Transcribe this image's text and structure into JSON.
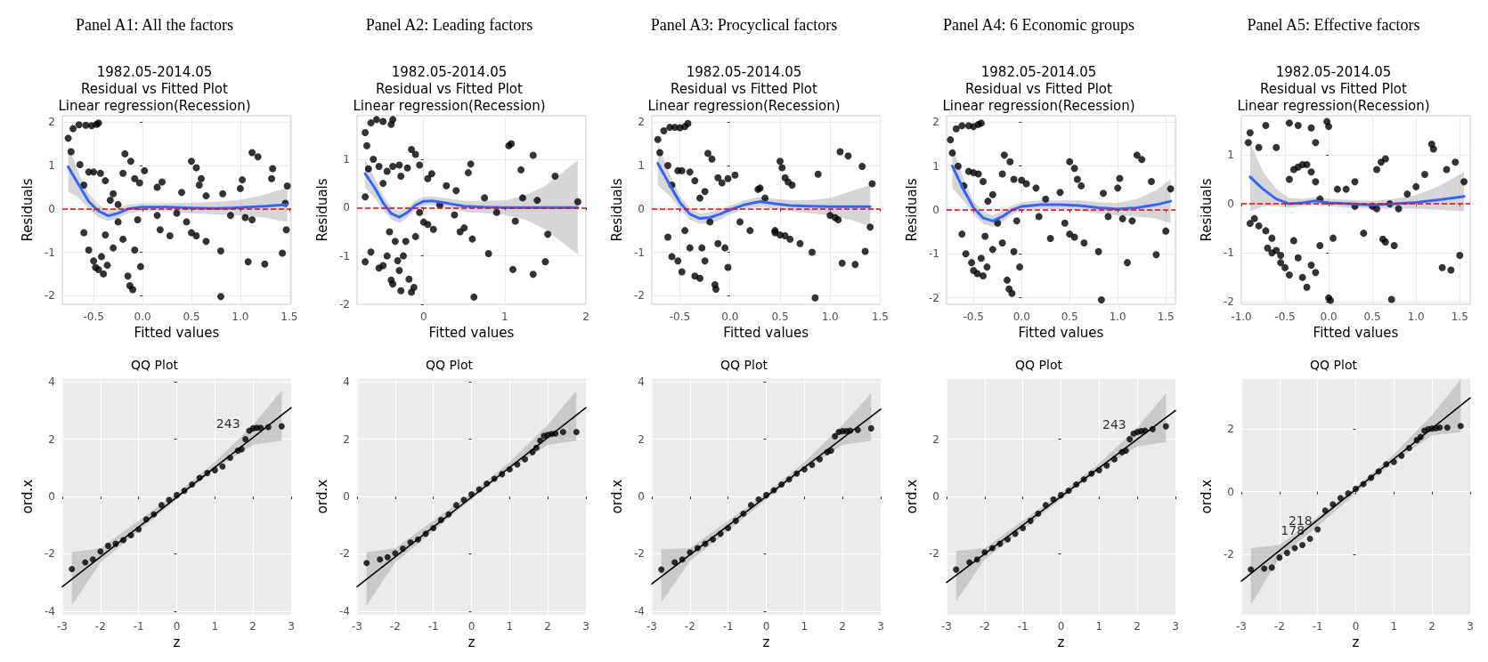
{
  "chart_data": [
    {
      "type": "scatter",
      "title": "Panel A1: All the factors",
      "subtitle": "1982.05-2014.05\nResidual vs Fitted Plot\nLinear regression(Recession)",
      "xlabel": "Fitted values",
      "ylabel": "Residuals",
      "grid": true,
      "xlim": [
        -0.82,
        1.52
      ],
      "xticks": [
        -0.5,
        {
          "value": 0,
          "label": "0.0"
        },
        0.5,
        {
          "value": 1,
          "label": "1.0"
        },
        1.5
      ],
      "ylim": [
        -2.2,
        2.15
      ],
      "yticks": [
        -2,
        -1,
        0,
        1,
        2
      ],
      "ref_lines": [
        {
          "axis": "y",
          "value": 0,
          "color": "#ff0000",
          "line_style": "dashed"
        }
      ],
      "series": [
        {
          "type": "scatter",
          "color": "#000000",
          "x": [
            -0.76,
            -0.73,
            -0.71,
            -0.65,
            -0.58,
            -0.52,
            -0.47,
            -0.45,
            -0.64,
            -0.6,
            -0.55,
            -0.5,
            -0.43,
            -0.38,
            -0.33,
            -0.3,
            -0.2,
            -0.18,
            -0.12,
            -0.08,
            -0.03,
            0.02,
            -0.6,
            -0.55,
            -0.5,
            -0.48,
            -0.45,
            -0.42,
            -0.4,
            -0.36,
            -0.38,
            -0.3,
            -0.25,
            -0.2,
            -0.15,
            -0.13,
            -0.1,
            -0.08,
            -0.02,
            -0.05,
            0.15,
            0.2,
            0.15,
            0.18,
            0.28,
            0.4,
            0.5,
            0.55,
            0.6,
            0.58,
            0.65,
            0.45,
            0.5,
            0.55,
            0.65,
            0.8,
            0.8,
            0.82,
            1.0,
            1.02,
            1.05,
            1.08,
            1.12,
            1.12,
            1.18,
            1.25,
            1.33,
            1.32,
            1.43,
            1.46,
            1.48,
            1.47,
            0.9,
            0.35,
            -0.25
          ],
          "values": [
            1.63,
            1.32,
            1.85,
            1.94,
            1.93,
            1.92,
            1.95,
            1.98,
            1.02,
            0.55,
            0.85,
            0.85,
            0.82,
            0.65,
            0.2,
            0.35,
            0.82,
            1.27,
            1.1,
            0.7,
            0.6,
            0.88,
            -0.55,
            -0.95,
            -1.2,
            -1.35,
            -1.4,
            -1.1,
            -1.5,
            -1.3,
            -0.6,
            -0.9,
            -0.3,
            -0.7,
            -1.55,
            -1.77,
            -1.86,
            -0.95,
            -1.33,
            -0.25,
            0.5,
            0.62,
            -0.15,
            -0.48,
            -0.62,
            0.38,
            1.1,
            0.95,
            0.7,
            0.55,
            0.3,
            -0.3,
            -0.55,
            -0.62,
            -0.75,
            -0.97,
            -2.02,
            0.35,
            0.47,
            0.67,
            -0.2,
            -1.22,
            -0.25,
            1.3,
            1.2,
            -1.27,
            0.93,
            0.7,
            -1.02,
            0.13,
            0.53,
            -0.48,
            -0.15,
            -0.1,
            0.1
          ]
        },
        {
          "type": "line",
          "color": "#3366ff",
          "x": [
            -0.76,
            -0.65,
            -0.55,
            -0.45,
            -0.35,
            -0.25,
            -0.15,
            0,
            0.25,
            0.5,
            0.75,
            1.0,
            1.25,
            1.48
          ],
          "values": [
            0.97,
            0.55,
            0.17,
            -0.05,
            -0.16,
            -0.1,
            0,
            0.04,
            0.04,
            0.02,
            0.01,
            0.03,
            0.06,
            0.1
          ],
          "lower": [
            0.4,
            0.25,
            0.0,
            -0.2,
            -0.28,
            -0.22,
            -0.1,
            -0.05,
            -0.05,
            -0.1,
            -0.13,
            -0.15,
            -0.2,
            -0.3
          ],
          "upper": [
            1.5,
            0.8,
            0.35,
            0.1,
            -0.03,
            0.02,
            0.1,
            0.13,
            0.13,
            0.14,
            0.16,
            0.21,
            0.33,
            0.5
          ]
        }
      ]
    },
    {
      "type": "scatter",
      "title": "Panel A2: Leading factors",
      "subtitle": "1982.05-2014.05\nResidual vs Fitted Plot\nLinear regression(Recession)",
      "xlabel": "Fitted values",
      "ylabel": "Residuals",
      "grid": true,
      "xlim": [
        -0.82,
        2.0
      ],
      "xticks": [
        0,
        1,
        2
      ],
      "ylim": [
        -2.0,
        1.9
      ],
      "yticks": [
        -2,
        -1,
        0,
        1
      ],
      "ref_lines": [
        {
          "axis": "y",
          "value": 0,
          "color": "#ff0000",
          "line_style": "dashed"
        }
      ],
      "series": [
        {
          "type": "scatter",
          "color": "#000000",
          "x": [
            -0.72,
            -0.7,
            -0.65,
            -0.58,
            -0.5,
            -0.4,
            -0.38,
            -0.72,
            -0.68,
            -0.62,
            -0.55,
            -0.5,
            -0.45,
            -0.38,
            -0.3,
            -0.28,
            -0.2,
            -0.15,
            -0.1,
            -0.05,
            0.05,
            0.1,
            -0.72,
            -0.65,
            -0.55,
            -0.5,
            -0.45,
            -0.42,
            -0.4,
            -0.38,
            -0.35,
            -0.32,
            -0.3,
            -0.28,
            -0.25,
            -0.22,
            -0.18,
            -0.15,
            -0.12,
            -0.1,
            0,
            0.05,
            0.12,
            0.28,
            0.4,
            0.38,
            0.45,
            0.5,
            0.55,
            0.58,
            0.6,
            0.62,
            0.75,
            0.8,
            0.9,
            1.05,
            1.08,
            1.1,
            1.13,
            1.2,
            1.22,
            1.35,
            1.35,
            1.4,
            1.5,
            1.53,
            1.62,
            1.9,
            0.2,
            -0.05
          ],
          "values": [
            1.55,
            1.28,
            1.75,
            1.82,
            1.78,
            1.72,
            1.82,
            0.22,
            0.8,
            1.0,
            0.85,
            0.5,
            0.75,
            0.85,
            0.88,
            0.65,
            0.82,
            1.2,
            1.1,
            0.88,
            0.6,
            0.7,
            -1.12,
            -0.92,
            -1.25,
            -1.2,
            -1.0,
            -0.5,
            -1.5,
            -1.58,
            -0.7,
            -1.1,
            -1.3,
            -1.72,
            -1.0,
            -0.7,
            -1.48,
            -1.75,
            -1.65,
            -0.6,
            -0.3,
            -0.35,
            -0.45,
            0.45,
            0.35,
            -0.15,
            -0.5,
            -0.42,
            0.72,
            0.9,
            -0.65,
            -1.85,
            0.2,
            -0.95,
            -0.1,
            1.28,
            1.32,
            -1.28,
            -0.28,
            0.78,
            0.2,
            1.08,
            -1.38,
            0.15,
            -1.12,
            -0.55,
            0.65,
            0.12,
            0.05,
            -0.1
          ]
        },
        {
          "type": "line",
          "color": "#3366ff",
          "x": [
            -0.72,
            -0.6,
            -0.5,
            -0.4,
            -0.3,
            -0.2,
            -0.1,
            0,
            0.1,
            0.25,
            0.5,
            0.75,
            1.0,
            1.25,
            1.5,
            1.9
          ],
          "values": [
            0.7,
            0.4,
            0.1,
            -0.12,
            -0.2,
            -0.1,
            0.05,
            0.13,
            0.14,
            0.1,
            0.03,
            0.01,
            0.0,
            0.0,
            0.0,
            0.0
          ],
          "lower": [
            0.4,
            0.2,
            -0.05,
            -0.25,
            -0.32,
            -0.2,
            -0.05,
            0.04,
            0.05,
            0.0,
            -0.08,
            -0.12,
            -0.15,
            -0.25,
            -0.45,
            -0.97
          ],
          "upper": [
            1.0,
            0.6,
            0.25,
            0.02,
            -0.08,
            0.0,
            0.15,
            0.22,
            0.23,
            0.2,
            0.14,
            0.14,
            0.15,
            0.25,
            0.45,
            0.98
          ]
        }
      ]
    },
    {
      "type": "scatter",
      "title": "Panel A3: Procyclical factors",
      "subtitle": "1982.05-2014.05\nResidual vs Fitted Plot\nLinear regression(Recession)",
      "xlabel": "Fitted values",
      "ylabel": "Residuals",
      "grid": true,
      "xlim": [
        -0.78,
        1.5
      ],
      "xticks": [
        -0.5,
        {
          "value": 0,
          "label": "0.0"
        },
        0.5,
        {
          "value": 1,
          "label": "1.0"
        },
        1.5
      ],
      "ylim": [
        -2.2,
        2.15
      ],
      "yticks": [
        -2,
        -1,
        0,
        1,
        2
      ],
      "ref_lines": [
        {
          "axis": "y",
          "value": 0,
          "color": "#ff0000",
          "line_style": "dashed"
        }
      ],
      "series": [
        {
          "type": "scatter",
          "color": "#000000",
          "x": [
            -0.72,
            -0.7,
            -0.66,
            -0.6,
            -0.55,
            -0.5,
            -0.45,
            -0.42,
            -0.62,
            -0.58,
            -0.52,
            -0.48,
            -0.4,
            -0.35,
            -0.3,
            -0.25,
            -0.22,
            -0.18,
            -0.12,
            -0.08,
            -0.02,
            0.05,
            -0.62,
            -0.58,
            -0.52,
            -0.48,
            -0.45,
            -0.4,
            -0.35,
            -0.3,
            -0.28,
            -0.25,
            -0.2,
            -0.15,
            -0.14,
            -0.12,
            -0.05,
            -0.02,
            0.1,
            0.2,
            0.28,
            0.3,
            0.35,
            0.45,
            0.5,
            0.52,
            0.55,
            0.58,
            0.62,
            0.45,
            0.5,
            0.55,
            0.6,
            0.7,
            0.82,
            0.85,
            0.88,
            1.0,
            1.05,
            1.08,
            1.1,
            1.12,
            1.18,
            1.25,
            1.32,
            1.35,
            1.42,
            1.4
          ],
          "values": [
            1.6,
            1.3,
            1.8,
            1.88,
            1.88,
            1.87,
            1.9,
            1.97,
            1.0,
            0.55,
            0.88,
            0.88,
            0.85,
            0.65,
            0.25,
            0.4,
            1.28,
            1.15,
            0.72,
            0.6,
            0.7,
            0.78,
            -0.65,
            -1.1,
            -1.2,
            -1.45,
            -0.5,
            -0.9,
            -1.55,
            -1.6,
            -0.9,
            -1.2,
            -0.3,
            -1.75,
            -1.85,
            -0.8,
            -0.9,
            -1.35,
            -0.3,
            -0.5,
            0.45,
            0.48,
            0.25,
            -0.5,
            1.1,
            0.95,
            0.72,
            0.62,
            0.55,
            -0.55,
            -0.6,
            -0.62,
            -0.7,
            -0.8,
            -1.0,
            -2.05,
            0.8,
            -0.15,
            -0.2,
            -0.25,
            1.32,
            -1.25,
            1.22,
            -1.28,
            0.98,
            -0.98,
            0.58,
            -0.42
          ]
        },
        {
          "type": "line",
          "color": "#3366ff",
          "x": [
            -0.72,
            -0.6,
            -0.5,
            -0.4,
            -0.3,
            -0.2,
            -0.1,
            0,
            0.15,
            0.3,
            0.45,
            0.6,
            0.8,
            1.0,
            1.2,
            1.4
          ],
          "values": [
            1.05,
            0.55,
            0.15,
            -0.12,
            -0.22,
            -0.2,
            -0.12,
            -0.02,
            0.1,
            0.17,
            0.12,
            0.08,
            0.06,
            0.05,
            0.05,
            0.05
          ],
          "lower": [
            0.55,
            0.3,
            0,
            -0.25,
            -0.35,
            -0.33,
            -0.25,
            -0.12,
            0,
            0.05,
            0,
            -0.05,
            -0.1,
            -0.15,
            -0.25,
            -0.4
          ],
          "upper": [
            1.5,
            0.8,
            0.3,
            0.02,
            -0.1,
            -0.08,
            0,
            0.08,
            0.2,
            0.28,
            0.23,
            0.2,
            0.2,
            0.25,
            0.4,
            0.55
          ]
        }
      ]
    },
    {
      "type": "scatter",
      "title": "Panel A4: 6 Economic groups",
      "subtitle": "1982.05-2014.05\nResidual vs Fitted Plot\nLinear regression(Recession)",
      "xlabel": "Fitted values",
      "ylabel": "Residuals",
      "grid": true,
      "xlim": [
        -0.78,
        1.6
      ],
      "xticks": [
        -0.5,
        {
          "value": 0,
          "label": "0.0"
        },
        0.5,
        {
          "value": 1,
          "label": "1.0"
        },
        1.5
      ],
      "ylim": [
        -2.15,
        2.15
      ],
      "yticks": [
        -2,
        -1,
        0,
        1,
        2
      ],
      "ref_lines": [
        {
          "axis": "y",
          "value": 0,
          "color": "#ff0000",
          "line_style": "dashed"
        }
      ],
      "series": [
        {
          "type": "scatter",
          "color": "#000000",
          "x": [
            -0.74,
            -0.72,
            -0.68,
            -0.62,
            -0.55,
            -0.5,
            -0.45,
            -0.42,
            -0.66,
            -0.6,
            -0.55,
            -0.5,
            -0.45,
            -0.4,
            -0.35,
            -0.3,
            -0.2,
            -0.18,
            -0.12,
            -0.08,
            0,
            0.05,
            -0.62,
            -0.58,
            -0.52,
            -0.5,
            -0.46,
            -0.42,
            -0.4,
            -0.36,
            -0.38,
            -0.3,
            -0.25,
            -0.2,
            -0.15,
            -0.13,
            -0.1,
            -0.08,
            -0.02,
            -0.05,
            0.15,
            0.25,
            0.18,
            0.3,
            0.4,
            0.5,
            0.55,
            0.58,
            0.62,
            0.45,
            0.5,
            0.55,
            0.65,
            0.8,
            0.83,
            0.85,
            1.0,
            1.02,
            1.05,
            1.1,
            1.15,
            1.2,
            1.25,
            1.35,
            1.4,
            1.5,
            1.55,
            0.9
          ],
          "values": [
            1.6,
            1.3,
            1.85,
            1.92,
            1.92,
            1.9,
            1.95,
            1.98,
            1.0,
            0.55,
            0.88,
            0.85,
            0.82,
            0.65,
            0.2,
            0.35,
            0.82,
            1.25,
            1.1,
            0.7,
            0.68,
            0.6,
            -0.55,
            -1.0,
            -1.2,
            -1.38,
            -1.45,
            -1.1,
            -1.5,
            -1.3,
            -0.6,
            -0.9,
            -0.3,
            -0.75,
            -1.6,
            -1.8,
            -1.9,
            -0.95,
            -1.3,
            -0.25,
            0.5,
            0.25,
            -0.15,
            -0.65,
            0.4,
            1.1,
            0.95,
            0.7,
            0.55,
            -0.3,
            -0.55,
            -0.62,
            -0.75,
            -0.95,
            -2.05,
            0.38,
            0.5,
            0.72,
            -0.2,
            -1.2,
            -0.25,
            1.25,
            1.15,
            0.65,
            -1.02,
            -0.48,
            0.48,
            -0.15
          ]
        },
        {
          "type": "line",
          "color": "#3366ff",
          "x": [
            -0.72,
            -0.6,
            -0.5,
            -0.4,
            -0.3,
            -0.2,
            -0.1,
            0,
            0.2,
            0.4,
            0.6,
            0.8,
            1.0,
            1.2,
            1.4,
            1.55
          ],
          "values": [
            1.0,
            0.45,
            0.05,
            -0.18,
            -0.25,
            -0.15,
            0,
            0.08,
            0.12,
            0.12,
            0.1,
            0.05,
            0.02,
            0.05,
            0.12,
            0.2
          ],
          "lower": [
            0.5,
            0.2,
            -0.1,
            -0.32,
            -0.38,
            -0.28,
            -0.1,
            -0.02,
            0.02,
            0.02,
            -0.02,
            -0.08,
            -0.12,
            -0.15,
            -0.2,
            -0.3
          ],
          "upper": [
            1.45,
            0.7,
            0.2,
            -0.04,
            -0.12,
            -0.03,
            0.1,
            0.18,
            0.22,
            0.22,
            0.22,
            0.18,
            0.16,
            0.25,
            0.45,
            0.7
          ]
        }
      ]
    },
    {
      "type": "scatter",
      "title": "Panel A5: Effective factors",
      "subtitle": "1982.05-2014.05\nResidual vs Fitted Plot\nLinear regression(Recession)",
      "xlabel": "Fitted values",
      "ylabel": "Residuals",
      "grid": true,
      "xlim": [
        -1.0,
        1.62
      ],
      "xticks": [
        {
          "value": -1,
          "label": "-1.0"
        },
        -0.5,
        {
          "value": 0,
          "label": "0.0"
        },
        0.5,
        {
          "value": 1,
          "label": "1.0"
        },
        1.5
      ],
      "ylim": [
        -2.05,
        1.8
      ],
      "yticks": [
        -2,
        -1,
        0,
        1
      ],
      "ref_lines": [
        {
          "axis": "y",
          "value": 0,
          "color": "#ff0000",
          "line_style": "dashed"
        }
      ],
      "series": [
        {
          "type": "scatter",
          "color": "#000000",
          "x": [
            -0.92,
            -0.9,
            -0.8,
            -0.72,
            -0.6,
            -0.45,
            -0.35,
            -0.2,
            -0.15,
            -0.02,
            0.0,
            -0.9,
            -0.85,
            -0.8,
            -0.72,
            -0.65,
            -0.6,
            -0.55,
            -0.45,
            -0.4,
            -0.35,
            -0.3,
            -0.25,
            -0.2,
            -0.15,
            -0.1,
            -0.7,
            -0.65,
            -0.55,
            -0.5,
            -0.45,
            -0.4,
            -0.35,
            -0.3,
            -0.25,
            -0.2,
            -0.15,
            -0.1,
            0.0,
            0.02,
            0.05,
            0.1,
            0.2,
            0.3,
            0.4,
            0.55,
            0.6,
            0.65,
            0.5,
            0.55,
            0.62,
            0.65,
            0.72,
            0.75,
            0.8,
            0.9,
            1.0,
            1.1,
            1.18,
            1.2,
            1.3,
            1.35,
            1.4,
            1.45,
            1.5,
            1.55,
            0.3,
            0.7
          ],
          "values": [
            1.25,
            1.45,
            1.15,
            1.6,
            1.15,
            1.65,
            1.6,
            1.55,
            1.25,
            1.68,
            1.58,
            -0.4,
            -0.3,
            -0.45,
            -0.55,
            -0.7,
            -0.95,
            -1.05,
            0.5,
            0.7,
            0.75,
            0.8,
            0.8,
            0.65,
            0.45,
            0.1,
            -0.9,
            -1.0,
            -1.2,
            -1.3,
            -1.45,
            -0.75,
            -1.1,
            -1.5,
            -1.7,
            -1.25,
            -1.4,
            -0.85,
            -1.92,
            -1.97,
            -0.7,
            0.3,
            0.3,
            0.45,
            -0.6,
            0.7,
            0.85,
            0.92,
            -0.05,
            -0.1,
            -0.72,
            -0.78,
            -1.95,
            -0.85,
            -0.1,
            0.2,
            0.35,
            0.6,
            1.22,
            1.12,
            -1.3,
            0.7,
            -1.35,
            0.85,
            -1.05,
            0.45,
            -0.05,
            0.0
          ]
        },
        {
          "type": "line",
          "color": "#3366ff",
          "x": [
            -0.9,
            -0.75,
            -0.6,
            -0.45,
            -0.3,
            -0.15,
            0,
            0.25,
            0.5,
            0.75,
            1.0,
            1.25,
            1.55
          ],
          "values": [
            0.55,
            0.3,
            0.1,
            0.0,
            0.02,
            0.06,
            0.02,
            0.0,
            -0.02,
            0.0,
            0.03,
            0.08,
            0.15
          ],
          "lower": [
            -0.15,
            -0.05,
            -0.05,
            -0.08,
            -0.05,
            -0.02,
            -0.05,
            -0.08,
            -0.1,
            -0.1,
            -0.1,
            -0.12,
            -0.15
          ],
          "upper": [
            1.25,
            0.65,
            0.3,
            0.12,
            0.1,
            0.14,
            0.1,
            0.08,
            0.06,
            0.1,
            0.18,
            0.35,
            0.65
          ]
        }
      ]
    },
    {
      "type": "scatter",
      "title": "QQ Plot",
      "xlabel": "z",
      "ylabel": "ord.x",
      "grid": true,
      "xlim": [
        -3,
        3
      ],
      "xticks": [
        -3,
        -2,
        -1,
        0,
        1,
        2,
        3
      ],
      "ylim": [
        -4.1,
        4.1
      ],
      "yticks": [
        -4,
        -2,
        0,
        2,
        4
      ],
      "annotations": [
        {
          "text": "243",
          "x": 1.8,
          "y": 2.25
        }
      ],
      "series": [
        {
          "type": "line",
          "color": "#000000",
          "x": [
            -3,
            3
          ],
          "values": [
            -3.15,
            3.1
          ]
        },
        {
          "type": "scatter",
          "color": "#000000",
          "x": [
            -2.75,
            -2.4,
            -2.2,
            -2.0,
            -1.8,
            -1.6,
            -1.4,
            -1.2,
            -1.0,
            -0.8,
            -0.6,
            -0.4,
            -0.2,
            0,
            0.2,
            0.4,
            0.6,
            0.8,
            1.0,
            1.2,
            1.4,
            1.6,
            1.7,
            1.8,
            1.9,
            2.0,
            2.1,
            2.2,
            2.4,
            2.75
          ],
          "values": [
            -2.53,
            -2.3,
            -2.2,
            -1.92,
            -1.72,
            -1.65,
            -1.52,
            -1.35,
            -1.15,
            -0.8,
            -0.62,
            -0.3,
            -0.12,
            0.05,
            0.2,
            0.42,
            0.65,
            0.82,
            0.92,
            1.05,
            1.35,
            1.6,
            1.65,
            2.0,
            2.3,
            2.38,
            2.4,
            2.4,
            2.42,
            2.45
          ]
        },
        {
          "type": "line",
          "color": "#b3b3b3",
          "x": [
            -2.75,
            -2,
            -1,
            0,
            1,
            2,
            2.75
          ],
          "values": [
            null,
            null,
            null,
            null,
            null,
            null,
            null
          ],
          "lower": [
            -3.8,
            -2.3,
            -1.2,
            -0.1,
            0.95,
            1.8,
            1.95
          ],
          "upper": [
            -1.95,
            -1.8,
            -0.85,
            0.12,
            1.2,
            2.5,
            3.7
          ]
        }
      ]
    },
    {
      "type": "scatter",
      "title": "QQ Plot",
      "xlabel": "z",
      "ylabel": "ord.x",
      "grid": true,
      "xlim": [
        -3,
        3
      ],
      "xticks": [
        -3,
        -2,
        -1,
        0,
        1,
        2,
        3
      ],
      "ylim": [
        -4.1,
        4.1
      ],
      "yticks": [
        -4,
        -2,
        0,
        2,
        4
      ],
      "series": [
        {
          "type": "line",
          "color": "#000000",
          "x": [
            -3,
            3
          ],
          "values": [
            -3.15,
            3.1
          ]
        },
        {
          "type": "scatter",
          "color": "#000000",
          "x": [
            -2.75,
            -2.4,
            -2.2,
            -2.0,
            -1.8,
            -1.6,
            -1.4,
            -1.2,
            -1.0,
            -0.8,
            -0.6,
            -0.4,
            -0.2,
            0,
            0.2,
            0.4,
            0.6,
            0.8,
            1.0,
            1.2,
            1.4,
            1.6,
            1.7,
            1.8,
            1.9,
            2.0,
            2.1,
            2.2,
            2.4,
            2.75
          ],
          "values": [
            -2.32,
            -2.2,
            -2.12,
            -1.98,
            -1.82,
            -1.6,
            -1.5,
            -1.3,
            -1.1,
            -0.82,
            -0.62,
            -0.3,
            -0.12,
            0.08,
            0.25,
            0.45,
            0.62,
            0.78,
            0.95,
            1.12,
            1.3,
            1.55,
            1.7,
            1.95,
            2.12,
            2.15,
            2.18,
            2.2,
            2.25,
            2.25
          ]
        },
        {
          "type": "line",
          "color": "#b3b3b3",
          "x": [
            -2.75,
            -2,
            -1,
            0,
            1,
            2,
            2.75
          ],
          "values": [
            null,
            null,
            null,
            null,
            null,
            null,
            null
          ],
          "lower": [
            -3.8,
            -2.3,
            -1.2,
            -0.1,
            0.95,
            1.8,
            1.95
          ],
          "upper": [
            -1.95,
            -1.8,
            -0.85,
            0.12,
            1.2,
            2.5,
            3.7
          ]
        }
      ]
    },
    {
      "type": "scatter",
      "title": "QQ Plot",
      "xlabel": "z",
      "ylabel": "ord.x",
      "grid": true,
      "xlim": [
        -3,
        3
      ],
      "xticks": [
        -3,
        -2,
        -1,
        0,
        1,
        2,
        3
      ],
      "ylim": [
        -4.1,
        4.1
      ],
      "yticks": [
        -4,
        -2,
        0,
        2,
        4
      ],
      "series": [
        {
          "type": "line",
          "color": "#000000",
          "x": [
            -3,
            3
          ],
          "values": [
            -3.05,
            3.05
          ]
        },
        {
          "type": "scatter",
          "color": "#000000",
          "x": [
            -2.75,
            -2.4,
            -2.2,
            -2.0,
            -1.8,
            -1.6,
            -1.4,
            -1.2,
            -1.0,
            -0.8,
            -0.6,
            -0.4,
            -0.2,
            0,
            0.2,
            0.4,
            0.6,
            0.8,
            1.0,
            1.2,
            1.4,
            1.6,
            1.7,
            1.8,
            1.9,
            2.0,
            2.1,
            2.2,
            2.4,
            2.75
          ],
          "values": [
            -2.55,
            -2.3,
            -2.2,
            -1.95,
            -1.8,
            -1.65,
            -1.5,
            -1.3,
            -1.1,
            -0.85,
            -0.6,
            -0.3,
            -0.1,
            0.05,
            0.22,
            0.42,
            0.6,
            0.8,
            0.95,
            1.1,
            1.3,
            1.55,
            1.6,
            2.1,
            2.25,
            2.28,
            2.28,
            2.3,
            2.32,
            2.38
          ]
        },
        {
          "type": "line",
          "color": "#b3b3b3",
          "x": [
            -2.75,
            -2,
            -1,
            0,
            1,
            2,
            2.75
          ],
          "values": [
            null,
            null,
            null,
            null,
            null,
            null,
            null
          ],
          "lower": [
            -3.7,
            -2.25,
            -1.2,
            -0.1,
            0.95,
            1.8,
            1.95
          ],
          "upper": [
            -1.85,
            -1.8,
            -0.85,
            0.12,
            1.2,
            2.5,
            3.6
          ]
        }
      ]
    },
    {
      "type": "scatter",
      "title": "QQ Plot",
      "xlabel": "z",
      "ylabel": "ord.x",
      "grid": true,
      "xlim": [
        -3,
        3
      ],
      "xticks": [
        -3,
        -2,
        -1,
        0,
        1,
        2,
        3
      ],
      "ylim": [
        -4.1,
        4.1
      ],
      "yticks": [
        -2,
        0,
        2
      ],
      "annotations": [
        {
          "text": "243",
          "x": 1.85,
          "y": 2.2
        }
      ],
      "series": [
        {
          "type": "line",
          "color": "#000000",
          "x": [
            -3,
            3
          ],
          "values": [
            -3.0,
            3.0
          ]
        },
        {
          "type": "scatter",
          "color": "#000000",
          "x": [
            -2.75,
            -2.4,
            -2.2,
            -2.0,
            -1.8,
            -1.6,
            -1.4,
            -1.2,
            -1.0,
            -0.8,
            -0.6,
            -0.4,
            -0.2,
            0,
            0.2,
            0.4,
            0.6,
            0.8,
            1.0,
            1.2,
            1.4,
            1.6,
            1.7,
            1.8,
            1.9,
            2.0,
            2.1,
            2.2,
            2.4,
            2.75
          ],
          "values": [
            -2.55,
            -2.3,
            -2.2,
            -1.95,
            -1.8,
            -1.65,
            -1.5,
            -1.3,
            -1.1,
            -0.85,
            -0.6,
            -0.3,
            -0.1,
            0.05,
            0.2,
            0.42,
            0.6,
            0.8,
            0.92,
            1.08,
            1.3,
            1.55,
            1.6,
            2.0,
            2.2,
            2.25,
            2.28,
            2.3,
            2.35,
            2.45
          ]
        },
        {
          "type": "line",
          "color": "#b3b3b3",
          "x": [
            -2.75,
            -2,
            -1,
            0,
            1,
            2,
            2.75
          ],
          "values": [
            null,
            null,
            null,
            null,
            null,
            null,
            null
          ],
          "lower": [
            -3.65,
            -2.2,
            -1.15,
            -0.1,
            0.9,
            1.75,
            1.9
          ],
          "upper": [
            -1.9,
            -1.8,
            -0.85,
            0.12,
            1.15,
            2.4,
            3.6
          ]
        }
      ]
    },
    {
      "type": "scatter",
      "title": "QQ Plot",
      "xlabel": "z",
      "ylabel": "ord.x",
      "grid": true,
      "xlim": [
        -3,
        3
      ],
      "xticks": [
        -3,
        -2,
        -1,
        0,
        1,
        2,
        3
      ],
      "ylim": [
        -3.9,
        3.6
      ],
      "yticks": [
        -2,
        0,
        2
      ],
      "annotations": [
        {
          "text": "218",
          "x": -1.0,
          "y": -1.2
        },
        {
          "text": "178",
          "x": -1.2,
          "y": -1.5
        }
      ],
      "series": [
        {
          "type": "line",
          "color": "#000000",
          "x": [
            -3,
            3
          ],
          "values": [
            -2.85,
            3.0
          ]
        },
        {
          "type": "scatter",
          "color": "#000000",
          "x": [
            -2.75,
            -2.4,
            -2.2,
            -2.0,
            -1.8,
            -1.6,
            -1.4,
            -1.2,
            -1.0,
            -0.8,
            -0.6,
            -0.4,
            -0.2,
            0,
            0.2,
            0.4,
            0.6,
            0.8,
            1.0,
            1.2,
            1.4,
            1.6,
            1.7,
            1.8,
            1.9,
            2.0,
            2.1,
            2.2,
            2.4,
            2.75
          ],
          "values": [
            -2.48,
            -2.45,
            -2.42,
            -2.1,
            -1.95,
            -1.8,
            -1.7,
            -1.5,
            -1.2,
            -0.6,
            -0.4,
            -0.2,
            -0.05,
            0.1,
            0.25,
            0.45,
            0.65,
            0.88,
            0.95,
            1.15,
            1.4,
            1.65,
            1.75,
            1.95,
            2.0,
            2.02,
            2.03,
            2.05,
            2.05,
            2.1
          ]
        },
        {
          "type": "line",
          "color": "#b3b3b3",
          "x": [
            -2.75,
            -2,
            -1,
            0,
            1,
            2,
            2.75
          ],
          "values": [
            null,
            null,
            null,
            null,
            null,
            null,
            null
          ],
          "lower": [
            -3.6,
            -2.1,
            -1.1,
            -0.05,
            0.95,
            1.8,
            1.9
          ],
          "upper": [
            -1.8,
            -1.7,
            -0.8,
            0.15,
            1.2,
            2.45,
            3.6
          ]
        }
      ]
    }
  ]
}
